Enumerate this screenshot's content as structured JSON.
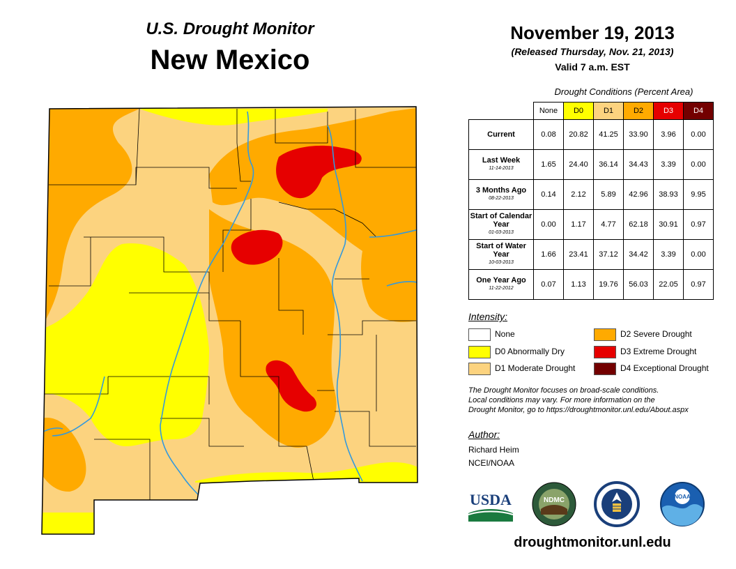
{
  "header": {
    "subtitle": "U.S. Drought Monitor",
    "title": "New Mexico",
    "date": "November 19, 2013",
    "released": "(Released Thursday, Nov. 21, 2013)",
    "valid": "Valid 7 a.m. EST"
  },
  "conditions": {
    "caption": "Drought Conditions (Percent Area)",
    "columns": [
      "None",
      "D0",
      "D1",
      "D2",
      "D3",
      "D4"
    ],
    "rows": [
      {
        "label": "Current",
        "date": "",
        "values": [
          "0.08",
          "20.82",
          "41.25",
          "33.90",
          "3.96",
          "0.00"
        ]
      },
      {
        "label": "Last Week",
        "date": "11-14-2013",
        "values": [
          "1.65",
          "24.40",
          "36.14",
          "34.43",
          "3.39",
          "0.00"
        ]
      },
      {
        "label": "3 Months Ago",
        "date": "08-22-2013",
        "values": [
          "0.14",
          "2.12",
          "5.89",
          "42.96",
          "38.93",
          "9.95"
        ]
      },
      {
        "label": "Start of Calendar Year",
        "date": "01-03-2013",
        "values": [
          "0.00",
          "1.17",
          "4.77",
          "62.18",
          "30.91",
          "0.97"
        ]
      },
      {
        "label": "Start of Water Year",
        "date": "10-03-2013",
        "values": [
          "1.66",
          "23.41",
          "37.12",
          "34.42",
          "3.39",
          "0.00"
        ]
      },
      {
        "label": "One Year Ago",
        "date": "11-22-2012",
        "values": [
          "0.07",
          "1.13",
          "19.76",
          "56.03",
          "22.05",
          "0.97"
        ]
      }
    ]
  },
  "legend": {
    "title": "Intensity:",
    "items": [
      {
        "label": "None",
        "color": "#ffffff"
      },
      {
        "label": "D0 Abnormally Dry",
        "color": "#ffff00"
      },
      {
        "label": "D1 Moderate Drought",
        "color": "#fcd37f"
      },
      {
        "label": "D2 Severe Drought",
        "color": "#ffaa00"
      },
      {
        "label": "D3 Extreme Drought",
        "color": "#e60000"
      },
      {
        "label": "D4 Exceptional Drought",
        "color": "#730000"
      }
    ]
  },
  "note": {
    "line1": "The Drought Monitor focuses on broad-scale conditions.",
    "line2": "Local conditions may vary. For more information on the",
    "line3": "Drought Monitor, go to https://droughtmonitor.unl.edu/About.aspx"
  },
  "author": {
    "title": "Author:",
    "name": "Richard Heim",
    "org": "NCEI/NOAA"
  },
  "logos": {
    "usda": "USDA",
    "ndmc": "NDMC",
    "noaa": "NOAA"
  },
  "website": "droughtmonitor.unl.edu",
  "colors": {
    "none": "#ffffff",
    "d0": "#ffff00",
    "d1": "#fcd37f",
    "d2": "#ffaa00",
    "d3": "#e60000",
    "d4": "#730000",
    "river": "#3399dd",
    "border": "#000000"
  }
}
